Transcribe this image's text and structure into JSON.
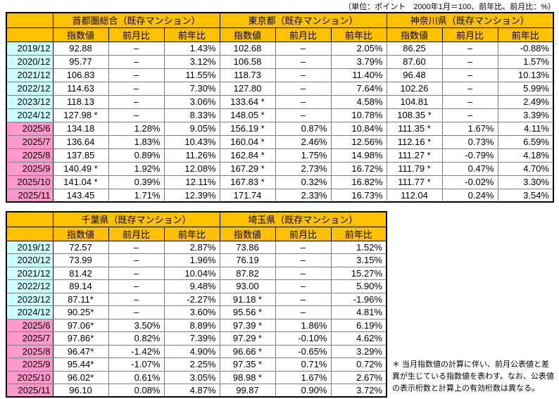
{
  "page": {
    "unit_note": "（単位：ポイント　2000年1月＝100、前年比、前月比：%）",
    "footnote": "＊ 当月指数値の計算に伴い、前月公表値と差異が生じている指数値を表わす。なお、公表値の表示桁数と計算上の有効桁数は異なる。"
  },
  "colors": {
    "header_bg": "#FFC000",
    "annual_row_bg": "#CCFFFF",
    "monthly_row_bg": "#FF99CC",
    "grid_line": "#808080",
    "border": "#000000"
  },
  "sub_headers": [
    "指数値",
    "前月比",
    "前年比"
  ],
  "row_labels": [
    "2019/12",
    "2020/12",
    "2021/12",
    "2022/12",
    "2023/12",
    "2024/12",
    "2025/6",
    "2025/7",
    "2025/8",
    "2025/9",
    "2025/10",
    "2025/11"
  ],
  "annual_row_count": 6,
  "tables": [
    {
      "regions": [
        {
          "title": "首都圏総合（既存マンション）",
          "rows": [
            [
              "92.88",
              "–",
              "1.43%"
            ],
            [
              "95.77",
              "–",
              "3.12%"
            ],
            [
              "106.83",
              "–",
              "11.55%"
            ],
            [
              "114.63",
              "–",
              "7.30%"
            ],
            [
              "118.13",
              "–",
              "3.06%"
            ],
            [
              "127.98 *",
              "–",
              "8.33%"
            ],
            [
              "134.18",
              "1.28%",
              "9.05%"
            ],
            [
              "136.64",
              "1.83%",
              "10.43%"
            ],
            [
              "137.85",
              "0.89%",
              "11.26%"
            ],
            [
              "140.49 *",
              "1.92%",
              "12.08%"
            ],
            [
              "141.04 *",
              "0.39%",
              "12.11%"
            ],
            [
              "143.45",
              "1.71%",
              "12.39%"
            ]
          ]
        },
        {
          "title": "東京都（既存マンション）",
          "rows": [
            [
              "102.68",
              "–",
              "2.05%"
            ],
            [
              "106.58",
              "–",
              "3.79%"
            ],
            [
              "118.73",
              "–",
              "11.40%"
            ],
            [
              "127.80",
              "–",
              "7.64%"
            ],
            [
              "133.64 *",
              "–",
              "4.58%"
            ],
            [
              "148.05 *",
              "–",
              "10.78%"
            ],
            [
              "156.19 *",
              "0.87%",
              "10.84%"
            ],
            [
              "160.04 *",
              "2.46%",
              "12.56%"
            ],
            [
              "162.84 *",
              "1.75%",
              "14.98%"
            ],
            [
              "167.29 *",
              "2.73%",
              "16.72%"
            ],
            [
              "167.83 *",
              "0.32%",
              "16.82%"
            ],
            [
              "171.74",
              "2.33%",
              "16.73%"
            ]
          ]
        },
        {
          "title": "神奈川県（既存マンション）",
          "rows": [
            [
              "86.25",
              "–",
              "-0.88%"
            ],
            [
              "87.60",
              "–",
              "1.57%"
            ],
            [
              "96.48",
              "–",
              "10.13%"
            ],
            [
              "102.26",
              "–",
              "5.99%"
            ],
            [
              "104.81",
              "–",
              "2.49%"
            ],
            [
              "108.35 *",
              "–",
              "3.39%"
            ],
            [
              "111.35 *",
              "1.67%",
              "4.11%"
            ],
            [
              "112.16 *",
              "0.73%",
              "6.59%"
            ],
            [
              "111.27 *",
              "-0.79%",
              "4.18%"
            ],
            [
              "111.79 *",
              "0.47%",
              "4.70%"
            ],
            [
              "111.77 *",
              "-0.02%",
              "3.30%"
            ],
            [
              "112.04",
              "0.24%",
              "3.54%"
            ]
          ]
        }
      ]
    },
    {
      "regions": [
        {
          "title": "千葉県（既存マンション）",
          "rows": [
            [
              "72.57",
              "–",
              "2.87%"
            ],
            [
              "73.99",
              "–",
              "1.96%"
            ],
            [
              "81.42",
              "–",
              "10.04%"
            ],
            [
              "89.14",
              "–",
              "9.48%"
            ],
            [
              "87.11*",
              "–",
              "-2.27%"
            ],
            [
              "90.25*",
              "–",
              "3.60%"
            ],
            [
              "97.06*",
              "3.50%",
              "8.89%"
            ],
            [
              "97.86*",
              "0.82%",
              "7.39%"
            ],
            [
              "96.47*",
              "-1.42%",
              "4.90%"
            ],
            [
              "95.44*",
              "-1.07%",
              "2.25%"
            ],
            [
              "96.02*",
              "0.61%",
              "3.05%"
            ],
            [
              "96.10",
              "0.08%",
              "4.87%"
            ]
          ]
        },
        {
          "title": "埼玉県（既存マンション）",
          "rows": [
            [
              "73.86",
              "–",
              "1.52%"
            ],
            [
              "76.19",
              "–",
              "3.15%"
            ],
            [
              "87.82",
              "–",
              "15.27%"
            ],
            [
              "93.00",
              "–",
              "5.90%"
            ],
            [
              "91.18 *",
              "–",
              "-1.96%"
            ],
            [
              "95.56 *",
              "–",
              "4.81%"
            ],
            [
              "97.39 *",
              "1.86%",
              "6.19%"
            ],
            [
              "97.29 *",
              "-0.10%",
              "4.62%"
            ],
            [
              "96.66 *",
              "-0.65%",
              "3.29%"
            ],
            [
              "97.35 *",
              "0.71%",
              "0.72%"
            ],
            [
              "98.98 *",
              "1.67%",
              "2.67%"
            ],
            [
              "99.87",
              "0.90%",
              "3.72%"
            ]
          ]
        }
      ]
    }
  ]
}
